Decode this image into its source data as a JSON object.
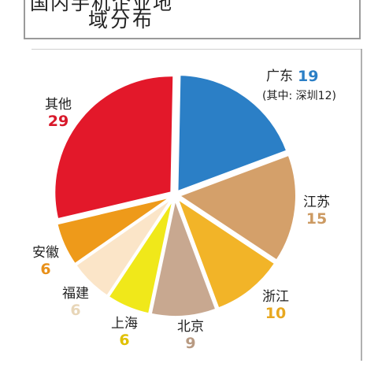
{
  "title": {
    "cut_line": "国内手机企业地",
    "line2": "域分布"
  },
  "chart_data": {
    "type": "pie",
    "title": "",
    "slices": [
      {
        "label": "广东",
        "value": 19,
        "note": "(其中: 深圳12)",
        "color": "#2b7fc6",
        "value_color": "#2b7fc6"
      },
      {
        "label": "江苏",
        "value": 15,
        "color": "#d4a06a",
        "value_color": "#cc9a62"
      },
      {
        "label": "浙江",
        "value": 10,
        "color": "#f2b428",
        "value_color": "#e8a820"
      },
      {
        "label": "北京",
        "value": 9,
        "color": "#c8a890",
        "value_color": "#b89a82"
      },
      {
        "label": "上海",
        "value": 6,
        "color": "#f0e81a",
        "value_color": "#e0c000"
      },
      {
        "label": "福建",
        "value": 6,
        "color": "#fbe5c8",
        "value_color": "#e8d6b8"
      },
      {
        "label": "安徽",
        "value": 6,
        "color": "#ee9a1a",
        "value_color": "#e8901a"
      },
      {
        "label": "其他",
        "value": 29,
        "color": "#e3182a",
        "value_color": "#d8182a"
      }
    ]
  }
}
